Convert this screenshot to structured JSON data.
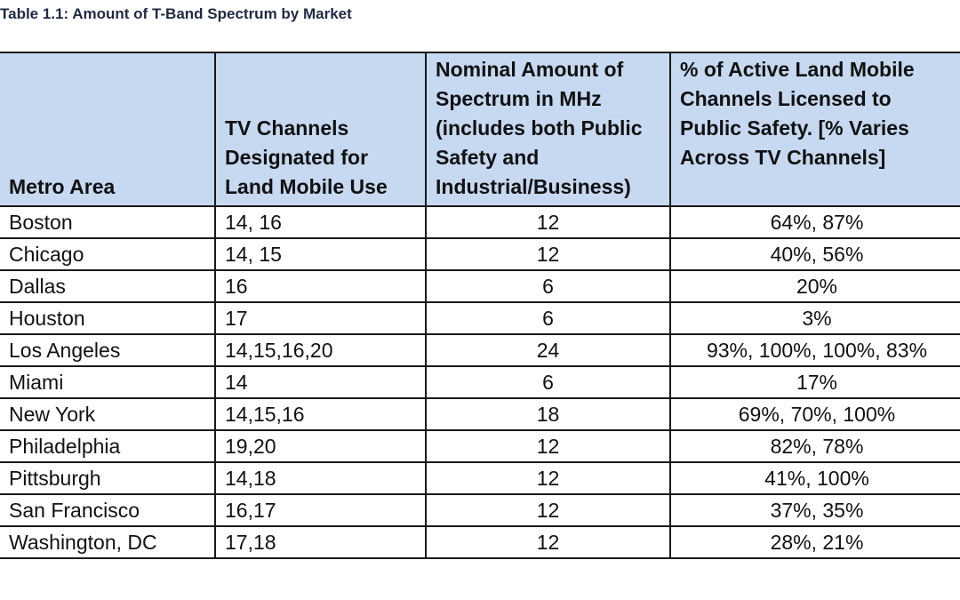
{
  "caption": "Table 1.1: Amount of T-Band Spectrum by Market",
  "headers": {
    "metro": "Metro Area",
    "channels": "TV Channels Designated for Land Mobile Use",
    "spectrum": "Nominal Amount of Spectrum in MHz (includes both Public Safety and Industrial/Business)",
    "percent": "% of Active Land Mobile Channels Licensed to Public Safety.  [% Varies Across TV Channels]"
  },
  "rows": [
    {
      "metro": "Boston",
      "channels": "14, 16",
      "mhz": "12",
      "percent": "64%, 87%"
    },
    {
      "metro": "Chicago",
      "channels": "14, 15",
      "mhz": "12",
      "percent": "40%, 56%"
    },
    {
      "metro": "Dallas",
      "channels": "16",
      "mhz": "6",
      "percent": "20%"
    },
    {
      "metro": "Houston",
      "channels": "17",
      "mhz": "6",
      "percent": "3%"
    },
    {
      "metro": "Los Angeles",
      "channels": "14,15,16,20",
      "mhz": "24",
      "percent": "93%, 100%, 100%, 83%"
    },
    {
      "metro": "Miami",
      "channels": "14",
      "mhz": "6",
      "percent": "17%"
    },
    {
      "metro": "New York",
      "channels": "14,15,16",
      "mhz": "18",
      "percent": "69%, 70%, 100%"
    },
    {
      "metro": "Philadelphia",
      "channels": "19,20",
      "mhz": "12",
      "percent": "82%, 78%"
    },
    {
      "metro": "Pittsburgh",
      "channels": "14,18",
      "mhz": "12",
      "percent": "41%, 100%"
    },
    {
      "metro": "San Francisco",
      "channels": "16,17",
      "mhz": "12",
      "percent": "37%, 35%"
    },
    {
      "metro": "Washington, DC",
      "channels": "17,18",
      "mhz": "12",
      "percent": "28%, 21%"
    }
  ]
}
